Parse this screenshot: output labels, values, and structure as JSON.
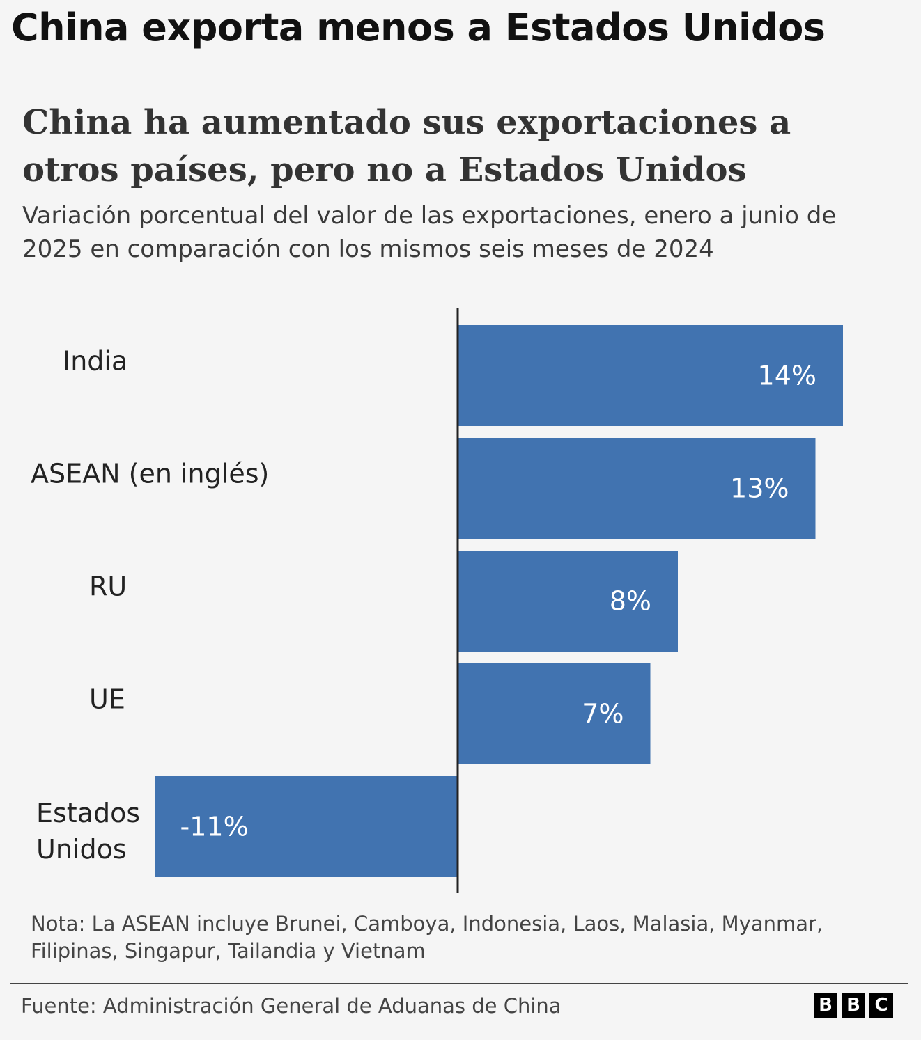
{
  "headline": "China exporta menos a Estados Unidos",
  "chart_data": {
    "type": "bar",
    "orientation": "horizontal",
    "title": "China ha aumentado sus exportaciones a otros países, pero no a Estados Unidos",
    "subtitle": "Variación porcentual del valor de las exportaciones, enero a junio de 2025 en comparación con los mismos seis meses de 2024",
    "categories": [
      "India",
      "ASEAN (en inglés)",
      "RU",
      "UE",
      "Estados Unidos"
    ],
    "values": [
      14,
      13,
      8,
      7,
      -11
    ],
    "labels": [
      "14%",
      "13%",
      "8%",
      "7%",
      "-11%"
    ],
    "unit": "%",
    "xlim": [
      -11,
      14
    ],
    "color": "#4173b0",
    "grid": false
  },
  "note": "Nota: La ASEAN incluye Brunei, Camboya, Indonesia, Laos, Malasia, Myanmar, Filipinas, Singapur, Tailandia y Vietnam",
  "source": "Fuente: Administración General de Aduanas de China",
  "logo": [
    "B",
    "B",
    "C"
  ]
}
